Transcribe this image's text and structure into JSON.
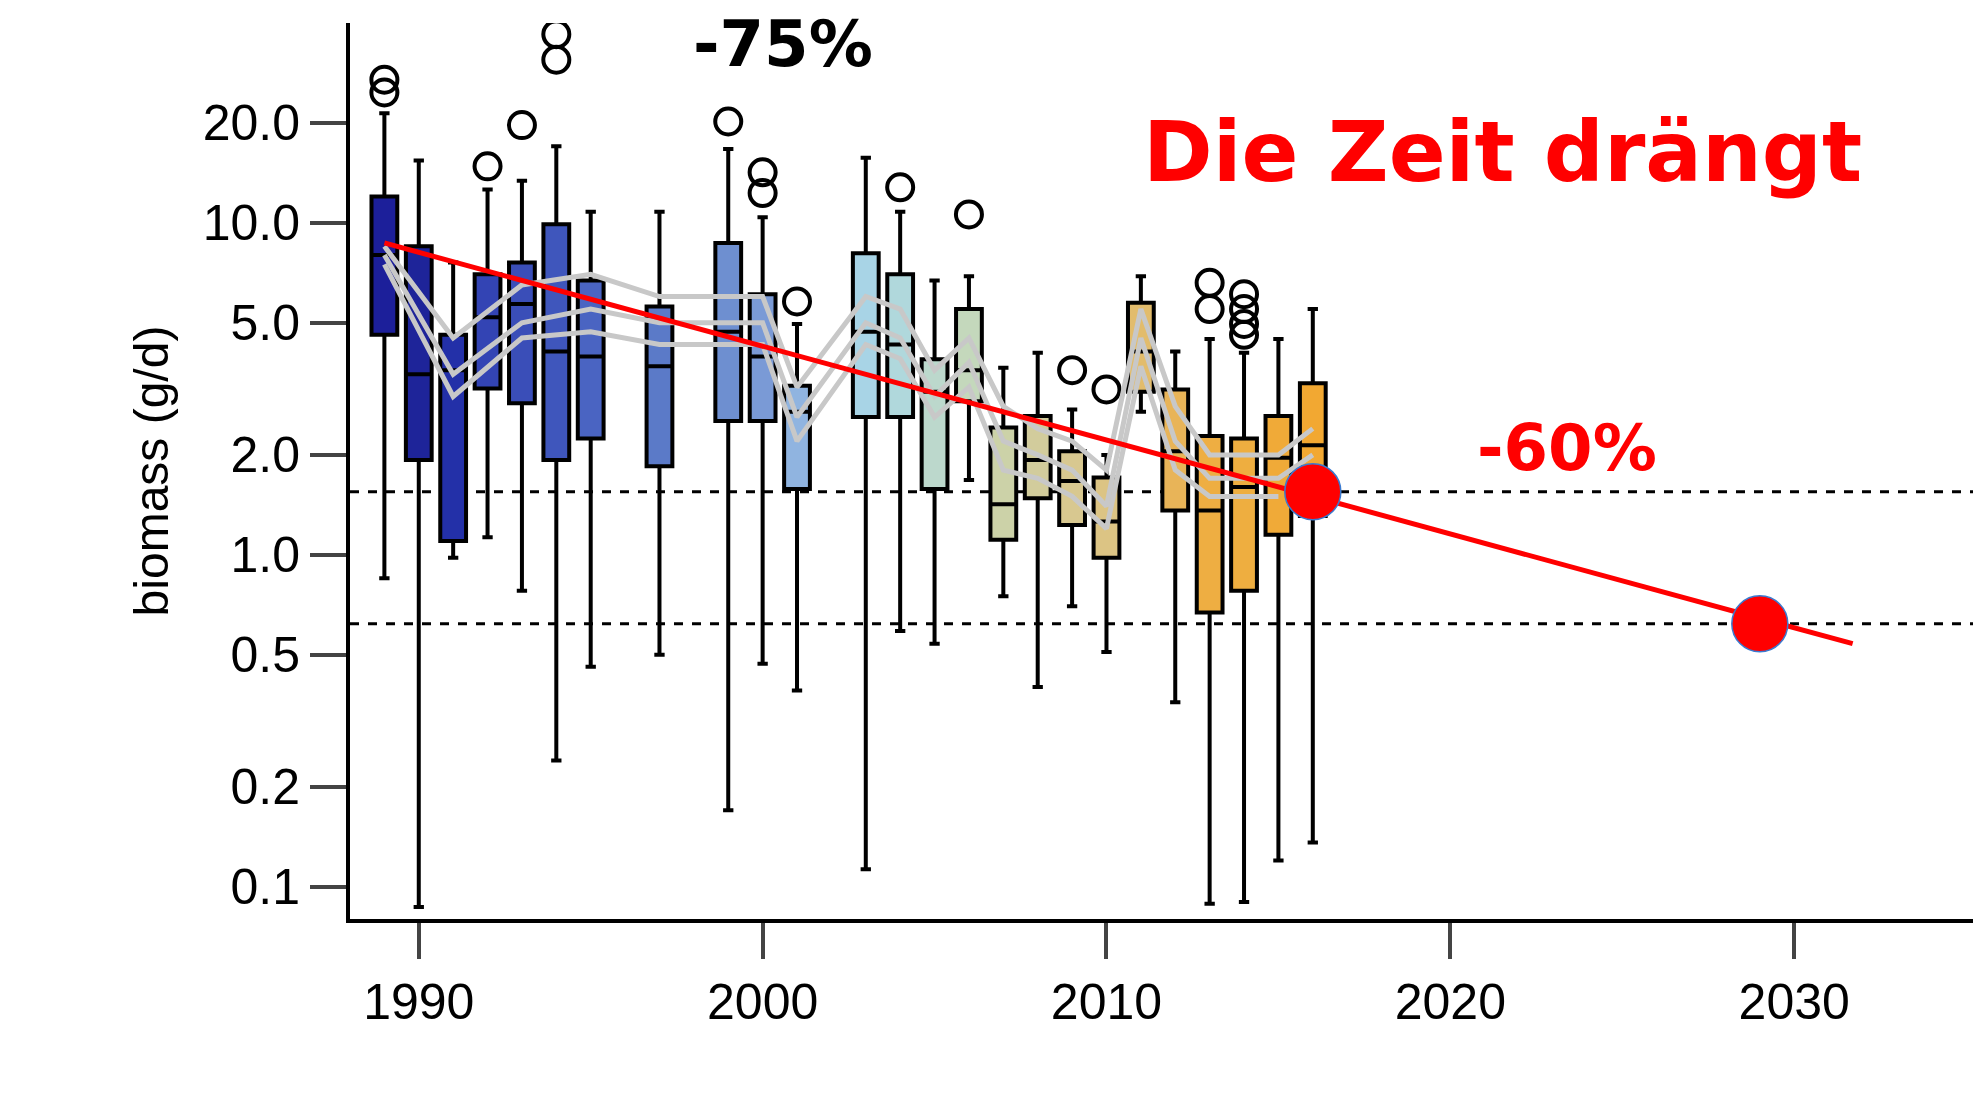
{
  "chart_data": {
    "type": "box",
    "ylabel": "biomass (g/d)",
    "log": true,
    "grid": false,
    "annotations": [
      "-75%",
      "Die Zeit drängt",
      "-60%"
    ],
    "x": [
      1989,
      1990,
      1991,
      1992,
      1993,
      1994,
      1995,
      1997,
      1999,
      2000,
      2001,
      2003,
      2004,
      2005,
      2006,
      2007,
      2008,
      2009,
      2010,
      2011,
      2012,
      2013,
      2014,
      2015,
      2016
    ],
    "colors": [
      "#1c1f9a",
      "#1e2499",
      "#2330a8",
      "#3344b4",
      "#3a4eb8",
      "#3f56bc",
      "#4a64c2",
      "#5b7ac8",
      "#6e8fd0",
      "#7a9ad6",
      "#90b4e0",
      "#a8d4e6",
      "#b0d8dc",
      "#bcd8cc",
      "#c4d8bc",
      "#ccd2a8",
      "#d2cc9c",
      "#d8c890",
      "#dcc484",
      "#e2bc6c",
      "#e8b458",
      "#eeae42",
      "#eeae40",
      "#f0aa38",
      "#f2a832"
    ],
    "boxes": [
      {
        "low": 0.85,
        "q1": 4.6,
        "median": 8,
        "q3": 12,
        "high": 21.4,
        "outliers": [
          24.7,
          27
        ]
      },
      {
        "low": 0.087,
        "q1": 1.93,
        "median": 3.5,
        "q3": 8.5,
        "high": 15.4
      },
      {
        "low": 0.98,
        "q1": 1.1,
        "median": 3.6,
        "q3": 4.6,
        "high": 7.6
      },
      {
        "low": 1.13,
        "q1": 3.17,
        "median": 5.2,
        "q3": 7,
        "high": 12.6,
        "outliers": [
          14.8
        ]
      },
      {
        "low": 0.78,
        "q1": 2.86,
        "median": 5.7,
        "q3": 7.6,
        "high": 13.4,
        "outliers": [
          19.7
        ]
      },
      {
        "low": 0.24,
        "q1": 1.93,
        "median": 4.1,
        "q3": 9.9,
        "high": 17,
        "outliers": [
          31,
          37
        ]
      },
      {
        "low": 0.46,
        "q1": 2.24,
        "median": 3.96,
        "q3": 6.7,
        "high": 10.8
      },
      {
        "low": 0.5,
        "q1": 1.85,
        "median": 3.7,
        "q3": 5.6,
        "high": 10.8
      },
      {
        "low": 0.17,
        "q1": 2.53,
        "median": 4.7,
        "q3": 8.7,
        "high": 16.7,
        "outliers": [
          20.2
        ]
      },
      {
        "low": 0.47,
        "q1": 2.53,
        "median": 3.96,
        "q3": 6.1,
        "high": 10.4,
        "outliers": [
          12.3,
          14.2
        ]
      },
      {
        "low": 0.39,
        "q1": 1.58,
        "median": 2.7,
        "q3": 3.23,
        "high": 4.96,
        "outliers": [
          5.8
        ]
      },
      {
        "low": 0.113,
        "q1": 2.6,
        "median": 4.7,
        "q3": 8.1,
        "high": 15.7
      },
      {
        "low": 0.59,
        "q1": 2.6,
        "median": 4.3,
        "q3": 7,
        "high": 10.8,
        "outliers": [
          12.8
        ]
      },
      {
        "low": 0.54,
        "q1": 1.58,
        "median": 3.1,
        "q3": 3.88,
        "high": 6.7
      },
      {
        "low": 1.68,
        "q1": 2.9,
        "median": 3.6,
        "q3": 5.5,
        "high": 6.9,
        "outliers": [
          10.6
        ]
      },
      {
        "low": 0.75,
        "q1": 1.11,
        "median": 1.42,
        "q3": 2.42,
        "high": 3.66
      },
      {
        "low": 0.4,
        "q1": 1.48,
        "median": 1.93,
        "q3": 2.62,
        "high": 4.06
      },
      {
        "low": 0.7,
        "q1": 1.23,
        "median": 1.67,
        "q3": 2.05,
        "high": 2.74,
        "outliers": [
          3.6
        ]
      },
      {
        "low": 0.51,
        "q1": 0.98,
        "median": 1.26,
        "q3": 1.71,
        "high": 2,
        "outliers": [
          3.15
        ]
      },
      {
        "low": 2.7,
        "q1": 3.1,
        "median": 4.1,
        "q3": 5.75,
        "high": 6.9
      },
      {
        "low": 0.36,
        "q1": 1.36,
        "median": 2.05,
        "q3": 3.15,
        "high": 4.1
      },
      {
        "low": 0.089,
        "q1": 0.67,
        "median": 1.36,
        "q3": 2.28,
        "high": 4.47,
        "outliers": [
          5.5,
          6.6
        ]
      },
      {
        "low": 0.09,
        "q1": 0.78,
        "median": 1.6,
        "q3": 2.24,
        "high": 4.06,
        "outliers": [
          4.6,
          4.96,
          5.5,
          6.1
        ]
      },
      {
        "low": 0.12,
        "q1": 1.15,
        "median": 1.96,
        "q3": 2.62,
        "high": 4.47
      },
      {
        "low": 0.136,
        "q1": 1.31,
        "median": 2.14,
        "q3": 3.29,
        "high": 5.5
      }
    ],
    "series": [
      {
        "type": "line",
        "color": "#c8c8c8",
        "marker": "none",
        "x": [
          1989,
          1991,
          1993,
          1995,
          1997,
          2000,
          2001,
          2003,
          2004,
          2005,
          2006,
          2007,
          2008,
          2009,
          2010,
          2011,
          2012,
          2013,
          2014,
          2015,
          2016
        ],
        "values": [
          8.5,
          4.5,
          6.5,
          7,
          6,
          6,
          3.2,
          6,
          5.5,
          3.6,
          4.5,
          2.8,
          2.4,
          2.2,
          1.8,
          5.5,
          2.8,
          2,
          2,
          2,
          2.4
        ]
      },
      {
        "type": "line",
        "color": "#c8c8c8",
        "marker": "none",
        "x": [
          1989,
          1991,
          1993,
          1995,
          1997,
          2000,
          2001,
          2003,
          2004,
          2005,
          2006,
          2007,
          2008,
          2009,
          2010,
          2011,
          2012,
          2013,
          2014,
          2015,
          2016
        ],
        "values": [
          8,
          3.5,
          5,
          5.5,
          5,
          5,
          2.6,
          5,
          4.5,
          3,
          3.8,
          2.2,
          2,
          1.8,
          1.4,
          4.5,
          2.2,
          1.7,
          1.7,
          1.7,
          2
        ]
      },
      {
        "type": "line",
        "color": "#c8c8c8",
        "marker": "none",
        "x": [
          1989,
          1991,
          1993,
          1995,
          1997,
          2000,
          2001,
          2003,
          2004,
          2005,
          2006,
          2007,
          2008,
          2009,
          2010,
          2011,
          2012,
          2013,
          2014,
          2015
        ],
        "values": [
          7.5,
          3,
          4.5,
          4.7,
          4.3,
          4.3,
          2.2,
          4.3,
          3.9,
          2.6,
          3.2,
          1.8,
          1.7,
          1.5,
          1.2,
          3.7,
          1.8,
          1.5,
          1.5,
          1.5
        ]
      },
      {
        "type": "line",
        "color": "#ff0000",
        "marker": "none",
        "x": [
          1989,
          2031.7
        ],
        "values": [
          8.7,
          0.54
        ]
      },
      {
        "type": "scatter",
        "color": "#ff0000",
        "marker": "circle",
        "x": [
          2016,
          2029
        ],
        "values": [
          1.55,
          0.62
        ]
      }
    ],
    "ref_lines": [
      {
        "axis": "y",
        "value": 1.55,
        "color": "#000000",
        "line_style": "dashed"
      },
      {
        "axis": "y",
        "value": 0.62,
        "color": "#000000",
        "line_style": "dashed"
      }
    ],
    "xlim": [
      1988,
      2035.2
    ],
    "xticks": [
      1990,
      2000,
      2010,
      2020,
      2030
    ],
    "ylim": [
      0.08,
      40
    ],
    "yticks": [
      {
        "value": 0.1,
        "label": "0.1"
      },
      {
        "value": 0.2,
        "label": "0.2"
      },
      {
        "value": 0.5,
        "label": "0.5"
      },
      {
        "value": 1,
        "label": "1.0"
      },
      {
        "value": 2,
        "label": "2.0"
      },
      {
        "value": 5,
        "label": "5.0"
      },
      {
        "value": 10,
        "label": "10.0"
      },
      {
        "value": 20,
        "label": "20.0"
      }
    ]
  }
}
